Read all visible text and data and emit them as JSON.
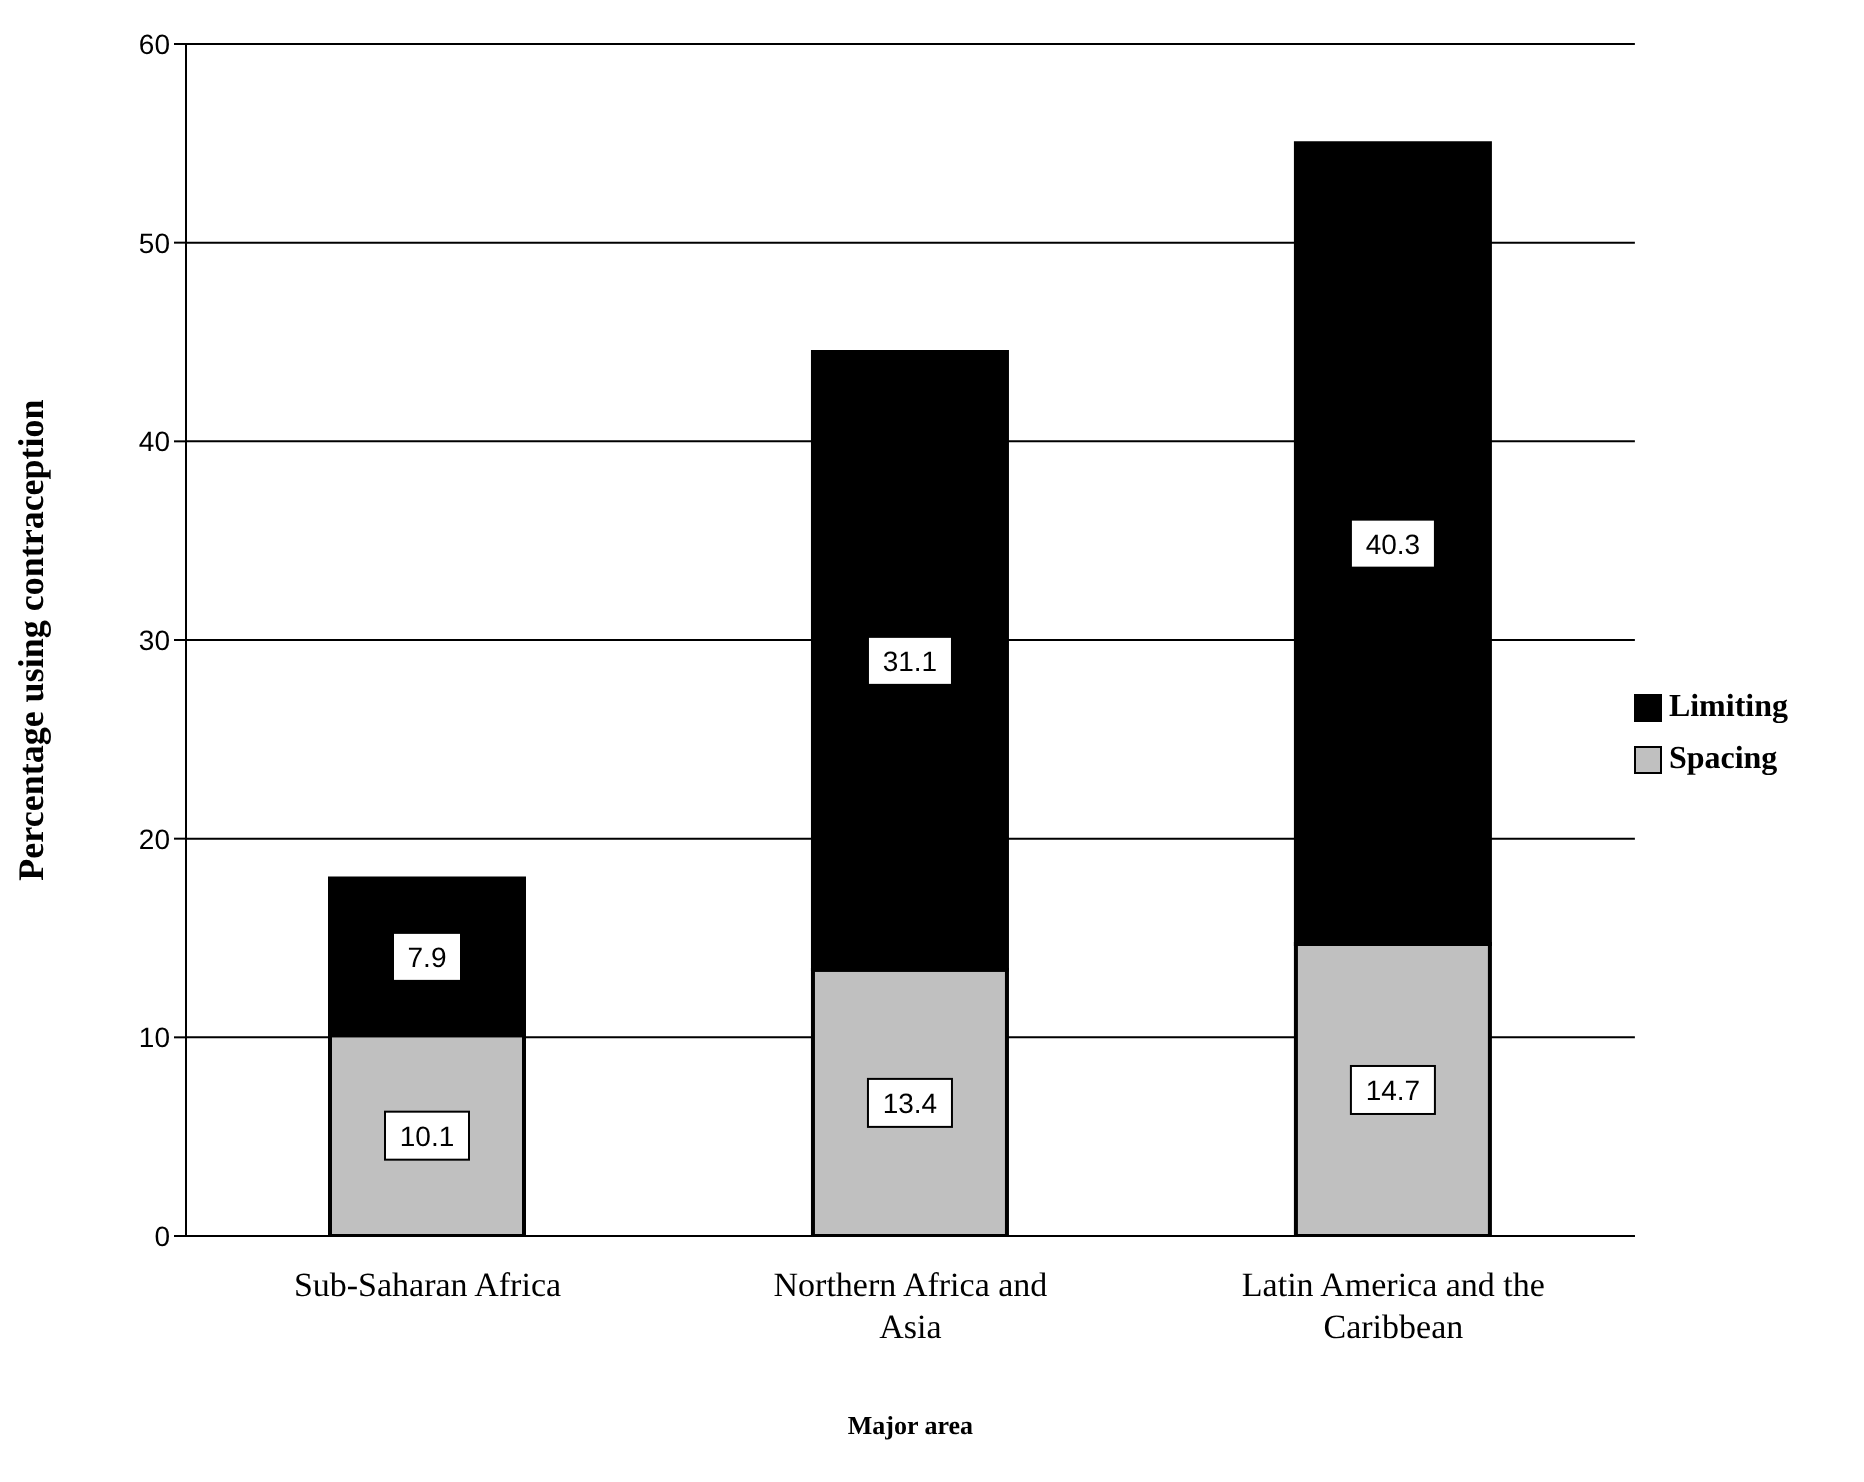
{
  "chart_data": {
    "type": "bar",
    "stacked": true,
    "xlabel": "Major area",
    "ylabel": "Percentage using contraception",
    "categories": [
      "Sub-Saharan Africa",
      "Northern Africa and Asia",
      "Latin America and the Caribbean"
    ],
    "series": [
      {
        "name": "Spacing",
        "color": "#c0c0c0",
        "values": [
          10.1,
          13.4,
          14.7
        ]
      },
      {
        "name": "Limiting",
        "color": "#000000",
        "values": [
          7.9,
          31.1,
          40.3
        ]
      }
    ],
    "ylim": [
      0,
      60
    ],
    "yticks": [
      0,
      10,
      20,
      30,
      40,
      50,
      60
    ],
    "grid": "y",
    "legend": "right",
    "data_labels": true
  }
}
